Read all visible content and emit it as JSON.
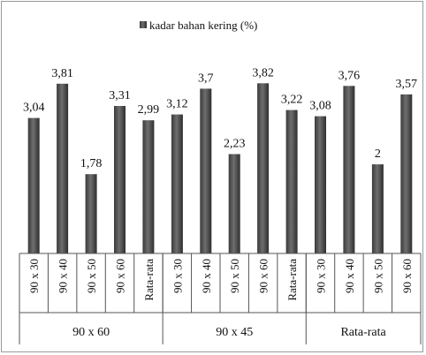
{
  "chart_data": {
    "type": "bar",
    "title": "",
    "xlabel": "",
    "ylabel": "",
    "legend": {
      "label": "kadar bahan kering (%)",
      "position": "top"
    },
    "grid": false,
    "ylim": [
      0,
      4.5
    ],
    "colors": {
      "bar": "#4a4a4a",
      "bar_highlight": "#7a7a7a",
      "axis": "#555555"
    },
    "groups": [
      {
        "name": "90 x 60",
        "categories": [
          "90 x 30",
          "90 x 40",
          "90 x 50",
          "90 x 60",
          "Rata-rata"
        ],
        "values": [
          3.04,
          3.81,
          1.78,
          3.31,
          2.99
        ],
        "labels": [
          "3,04",
          "3,81",
          "1,78",
          "3,31",
          "2,99"
        ]
      },
      {
        "name": "90 x 45",
        "categories": [
          "90 x 30",
          "90 x 40",
          "90 x 50",
          "90 x 60",
          "Rata-rata"
        ],
        "values": [
          3.12,
          3.7,
          2.23,
          3.82,
          3.22
        ],
        "labels": [
          "3,12",
          "3,7",
          "2,23",
          "3,82",
          "3,22"
        ]
      },
      {
        "name": "Rata-rata",
        "categories": [
          "90 x 30",
          "90 x 40",
          "90 x 50",
          "90 x 60"
        ],
        "values": [
          3.08,
          3.76,
          2.0,
          3.57
        ],
        "labels": [
          "3,08",
          "3,76",
          "2",
          "3,57"
        ]
      }
    ]
  }
}
